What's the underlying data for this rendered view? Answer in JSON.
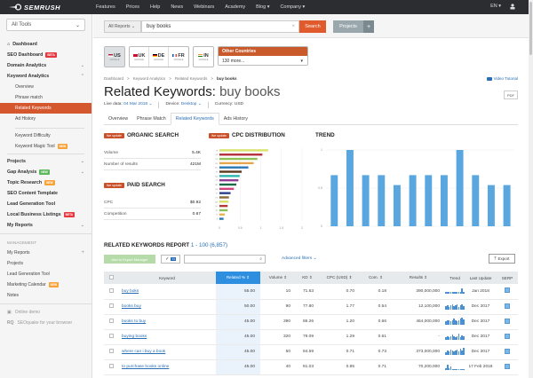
{
  "topbar": {
    "logo": "SEMRUSH",
    "nav": [
      "Features",
      "Prices",
      "Help",
      "News",
      "Webinars",
      "Academy",
      "Blog ▾",
      "Company ▾"
    ],
    "lang": "EN ▾"
  },
  "sidebar": {
    "all_tools": "All Tools",
    "items": [
      {
        "label": "Dashboard"
      },
      {
        "label": "SEO Dashboard",
        "badge": "BETA"
      },
      {
        "label": "Domain Analytics"
      },
      {
        "label": "Keyword Analytics"
      },
      {
        "label": "Overview"
      },
      {
        "label": "Phrase match"
      },
      {
        "label": "Related Keywords"
      },
      {
        "label": "Ad History"
      },
      {
        "label": "Keyword Difficulty"
      },
      {
        "label": "Keyword Magic Tool",
        "badge": "NEW"
      },
      {
        "label": "Projects"
      },
      {
        "label": "Gap Analysis",
        "badge": "NEW"
      },
      {
        "label": "Topic Research",
        "badge": "NEW"
      },
      {
        "label": "SEO Content Template"
      },
      {
        "label": "Lead Generation Tool"
      },
      {
        "label": "Local Business Listings",
        "badge": "BETA"
      },
      {
        "label": "My Reports"
      }
    ],
    "management_title": "MANAGEMENT",
    "management": [
      {
        "label": "My Reports"
      },
      {
        "label": "Projects"
      },
      {
        "label": "Lead Generation Tool"
      },
      {
        "label": "Marketing Calendar",
        "badge": "NEW"
      },
      {
        "label": "Notes"
      }
    ],
    "footer": [
      {
        "label": "Online demo"
      },
      {
        "label": "SEOquake for your browser"
      }
    ]
  },
  "search": {
    "scope": "All Reports ⌄",
    "query": "buy books",
    "search_label": "Search",
    "projects_label": "Projects",
    "plus": "+"
  },
  "databases": {
    "items": [
      {
        "code": "US",
        "engine": "GOOGLE",
        "selected": true
      },
      {
        "code": "UK",
        "engine": "GOOGLE"
      },
      {
        "code": "DE",
        "engine": "GOOGLE"
      },
      {
        "code": "FR",
        "engine": "GOOGLE"
      },
      {
        "code": "IN",
        "engine": "GOOGLE"
      }
    ],
    "other_title": "Other Countries",
    "other_value": "130 more..."
  },
  "breadcrumb": [
    "Dashboard",
    ">",
    "Keyword Analytics",
    ">",
    "Related Keywords",
    ">",
    "buy books"
  ],
  "video_tutorial": "Video Tutorial",
  "page": {
    "title_prefix": "Related Keywords:",
    "title_query": "buy books",
    "pdf": "PDF",
    "live_data_label": "Live data:",
    "live_data_value": "04 Mar 2018 ⌄",
    "device_label": "Device:",
    "device_value": "Desktop ⌄",
    "currency": "Currency: USD"
  },
  "tabs": [
    "Overview",
    "Phrase Match",
    "Related Keywords",
    "Ads History"
  ],
  "organic": {
    "badge": "live update",
    "title": "ORGANIC SEARCH",
    "rows": [
      {
        "label": "Volume",
        "value": "5.4K"
      },
      {
        "label": "Number of results",
        "value": "421M"
      }
    ]
  },
  "paid": {
    "badge": "live update",
    "title": "PAID SEARCH",
    "rows": [
      {
        "label": "CPC",
        "value": "$0.92"
      },
      {
        "label": "Competition",
        "value": "0.67"
      }
    ]
  },
  "chart_data": [
    {
      "type": "bar",
      "orientation": "horizontal",
      "title": "CPC DISTRIBUTION",
      "badge": "live update",
      "categories": [
        "nl",
        "uk",
        "us",
        "ca",
        "au",
        "ie",
        "sg",
        "nz",
        "de",
        "za",
        "in",
        "es",
        "dk",
        "se",
        "br",
        "fr",
        "it"
      ],
      "values": [
        1.18,
        1.04,
        0.92,
        0.83,
        0.7,
        0.54,
        0.49,
        0.46,
        0.41,
        0.35,
        0.27,
        0.23,
        0.22,
        0.2,
        0.2,
        0.13,
        0.1
      ],
      "colors": [
        "#d9e36a",
        "#b5313d",
        "#8cc156",
        "#e8a74e",
        "#2b79b5",
        "#5b3a1e",
        "#2fb6b0",
        "#8d3d96",
        "#1d6b4b",
        "#d6417d",
        "#2c3f8f",
        "#8b6a3d",
        "#d5e063",
        "#b43a3a",
        "#8cc156",
        "#f0b055",
        "#2b79b5"
      ],
      "xticks": [
        "0",
        "0.5",
        "1",
        "1.5",
        "2"
      ],
      "xlim": [
        0,
        2
      ]
    },
    {
      "type": "bar",
      "title": "TREND",
      "categories": [
        "1",
        "2",
        "3",
        "4",
        "5",
        "6",
        "7",
        "8",
        "9",
        "10",
        "11",
        "12"
      ],
      "values": [
        0.67,
        1,
        0.67,
        0.67,
        0.54,
        0.67,
        0.67,
        0.67,
        1,
        0.67,
        0.54,
        0.54
      ],
      "yticks": [
        "0",
        "0.5",
        "1"
      ],
      "ylim": [
        0,
        1
      ],
      "color": "#5aa7e0"
    }
  ],
  "report": {
    "title": "RELATED KEYWORDS REPORT",
    "range": "1 - 100 (6,857)",
    "add_export": "Add to Export Manager",
    "toggle_badge": "74",
    "advanced_filters": "Advanced filters ⌄",
    "export": "Export",
    "columns": [
      "",
      "Keyword",
      "Related % ⇕",
      "Volume ⇕",
      "KD ⇕",
      "CPC (USD) ⇕",
      "Com. ⇕",
      "Results ⇕",
      "Trend",
      "Last Update",
      "SERP"
    ],
    "rows": [
      {
        "keyword": "buy boks",
        "related": "55.00",
        "volume": "10",
        "kd": "71.63",
        "cpc": "0.70",
        "com": "0.18",
        "results": "390,000,000",
        "trend": [
          2,
          2,
          2,
          2,
          2,
          2,
          2,
          2,
          2,
          2,
          6,
          2
        ],
        "updated": "Jan 2018"
      },
      {
        "keyword": "books buy",
        "related": "50.00",
        "volume": "90",
        "kd": "77.80",
        "cpc": "1.77",
        "com": "0.54",
        "results": "12,100,000",
        "trend": [
          4,
          5,
          3,
          5,
          6,
          4,
          5,
          6,
          3,
          5,
          6,
          4
        ],
        "updated": "Dec 2017"
      },
      {
        "keyword": "books to buy",
        "related": "45.00",
        "volume": "390",
        "kd": "86.26",
        "cpc": "1.20",
        "com": "0.66",
        "results": "464,000,000",
        "trend": [
          4,
          5,
          5,
          4,
          5,
          7,
          5,
          4,
          5,
          7,
          8,
          6
        ],
        "updated": "Dec 2017"
      },
      {
        "keyword": "buying books",
        "related": "45.00",
        "volume": "320",
        "kd": "79.09",
        "cpc": "1.29",
        "com": "0.61",
        "results": "-",
        "trend": [
          3,
          4,
          3,
          4,
          6,
          4,
          3,
          4,
          7,
          3,
          5,
          4
        ],
        "updated": "Dec 2017"
      },
      {
        "keyword": "where can i buy a book",
        "related": "45.00",
        "volume": "50",
        "kd": "84.59",
        "cpc": "0.71",
        "com": "0.73",
        "results": "373,000,000",
        "trend": [
          3,
          5,
          4,
          6,
          5,
          4,
          5,
          6,
          4,
          7,
          5,
          8
        ],
        "updated": "Dec 2017"
      },
      {
        "keyword": "to purchase books online",
        "related": "45.00",
        "volume": "40",
        "kd": "81.03",
        "cpc": "0.85",
        "com": "0.71",
        "results": "70,200,000",
        "trend": [
          2,
          6,
          2,
          4,
          1,
          1,
          1,
          1,
          1,
          1,
          1,
          1
        ],
        "updated": "17 Feb 2018"
      }
    ]
  }
}
